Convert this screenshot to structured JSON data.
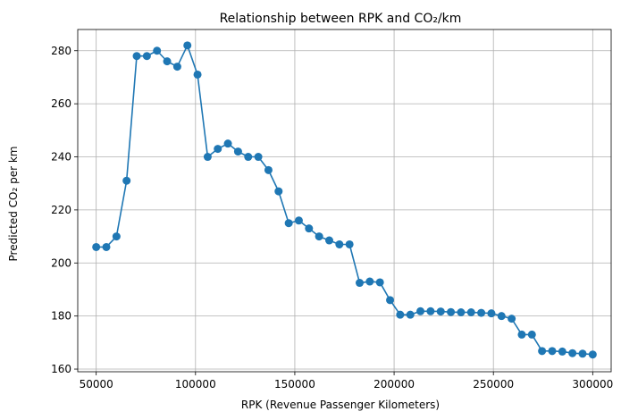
{
  "chart_data": {
    "type": "line",
    "title": "Relationship between RPK and CO₂/km",
    "xlabel": "RPK (Revenue Passenger Kilometers)",
    "ylabel": "Predicted CO₂ per km",
    "xlim": [
      40700,
      309300
    ],
    "ylim": [
      159,
      288
    ],
    "xticks": [
      50000,
      100000,
      150000,
      200000,
      250000,
      300000
    ],
    "xtick_labels": [
      "50000",
      "100000",
      "150000",
      "200000",
      "250000",
      "300000"
    ],
    "yticks": [
      160,
      180,
      200,
      220,
      240,
      260,
      280
    ],
    "ytick_labels": [
      "160",
      "180",
      "200",
      "220",
      "240",
      "260",
      "280"
    ],
    "grid": true,
    "legend": "none",
    "colors": {
      "series": "#1f77b4"
    },
    "series": [
      {
        "marker": "circle",
        "x": [
          50000,
          55102,
          60204,
          65306,
          70408,
          75510,
          80612,
          85714,
          90816,
          95918,
          101020,
          106122,
          111224,
          116326,
          121429,
          126531,
          131633,
          136735,
          141837,
          146939,
          152041,
          157143,
          162245,
          167347,
          172449,
          177551,
          182653,
          187755,
          192857,
          197959,
          203061,
          208163,
          213265,
          218367,
          223469,
          228571,
          233673,
          238776,
          243878,
          248980,
          254082,
          259184,
          264286,
          269388,
          274490,
          279592,
          284694,
          289796,
          294898,
          300000
        ],
        "y": [
          206,
          206,
          210,
          231,
          278,
          278,
          280,
          276,
          274,
          282,
          271,
          240,
          243,
          245,
          242,
          240,
          240,
          235,
          227,
          215,
          216,
          213,
          210,
          208.5,
          207,
          207,
          192.5,
          193,
          192.7,
          186,
          180.5,
          180.5,
          181.8,
          181.8,
          181.7,
          181.5,
          181.4,
          181.4,
          181.2,
          181,
          180,
          179,
          173,
          173,
          166.8,
          166.8,
          166.6,
          166,
          165.8,
          165.5
        ]
      }
    ]
  }
}
